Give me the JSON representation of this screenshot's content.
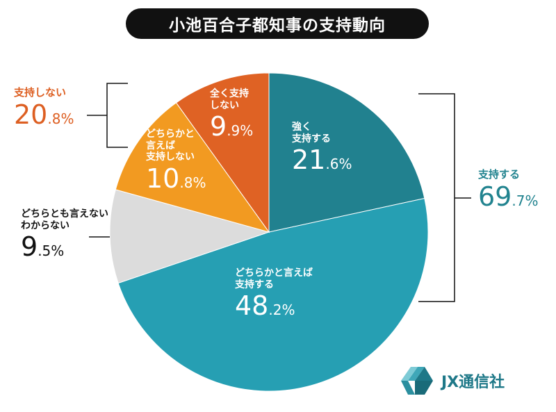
{
  "title": "小池百合子都知事の支持動向",
  "chart_data": {
    "type": "pie",
    "title": "小池百合子都知事の支持動向",
    "unit": "%",
    "slices": [
      {
        "label": "強く支持する",
        "value": 21.6,
        "color": "#21818f"
      },
      {
        "label": "どちらかと言えば支持する",
        "value": 48.2,
        "color": "#269fb3"
      },
      {
        "label": "どちらとも言えない・わからない",
        "value": 9.5,
        "color": "#dcdcdc"
      },
      {
        "label": "どちらかと言えば支持しない",
        "value": 10.8,
        "color": "#f29a21"
      },
      {
        "label": "全く支持しない",
        "value": 9.9,
        "color": "#df6224"
      }
    ],
    "groups": [
      {
        "label": "支持する",
        "value": 69.7,
        "color": "#21838f"
      },
      {
        "label": "支持しない",
        "value": 20.8,
        "color": "#dd5f22"
      }
    ]
  },
  "labels": {
    "strong_support": {
      "line1": "強く",
      "line2": "支持する",
      "int": "21",
      "dec": ".6%"
    },
    "somewhat_support": {
      "line1": "どちらかと言えば",
      "line2": "支持する",
      "int": "48",
      "dec": ".2%"
    },
    "neutral": {
      "line1": "どちらとも言えない",
      "line2": "わからない",
      "int": "9",
      "dec": ".5%"
    },
    "somewhat_not": {
      "line1": "どちらかと",
      "line2": "言えば",
      "line3": "支持しない",
      "int": "10",
      "dec": ".8%"
    },
    "not_at_all": {
      "line1": "全く支持",
      "line2": "しない",
      "int": "9",
      "dec": ".9%"
    },
    "group_support": {
      "name": "支持する",
      "int": "69",
      "dec": ".7%"
    },
    "group_not": {
      "name": "支持しない",
      "int": "20",
      "dec": ".8%"
    }
  },
  "brand": {
    "name": "JX通信社",
    "icon": "jx-logo-icon",
    "color": "#1e7888"
  }
}
